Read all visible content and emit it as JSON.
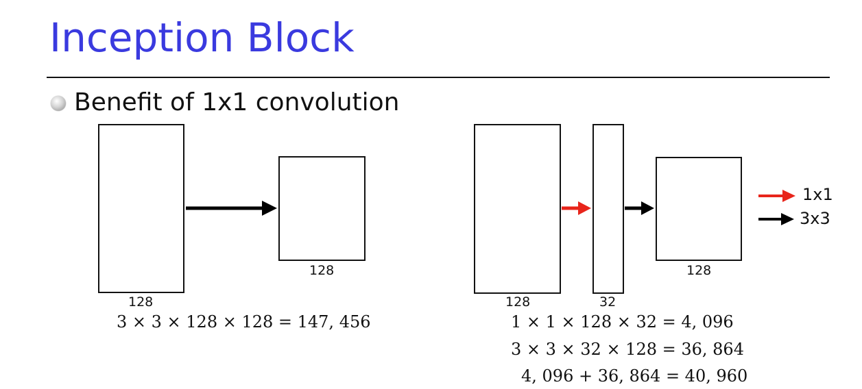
{
  "title": "Inception Block",
  "bullet": "Benefit of 1x1 convolution",
  "left": {
    "input_label": "128",
    "output_label": "128",
    "equation": "3 × 3 × 128 × 128 = 147, 456"
  },
  "right": {
    "input_label": "128",
    "middle_label": "32",
    "output_label": "128",
    "equations": [
      "1 × 1 × 128 × 32 = 4, 096",
      "3 × 3 × 32 × 128 = 36, 864",
      "4, 096 + 36, 864 = 40, 960"
    ]
  },
  "legend": [
    {
      "label": "1x1",
      "color": "#e8251b"
    },
    {
      "label": "3x3",
      "color": "#000000"
    }
  ],
  "colors": {
    "title": "#3a3adf",
    "arrow_1x1": "#e8251b",
    "arrow_3x3": "#000000"
  }
}
